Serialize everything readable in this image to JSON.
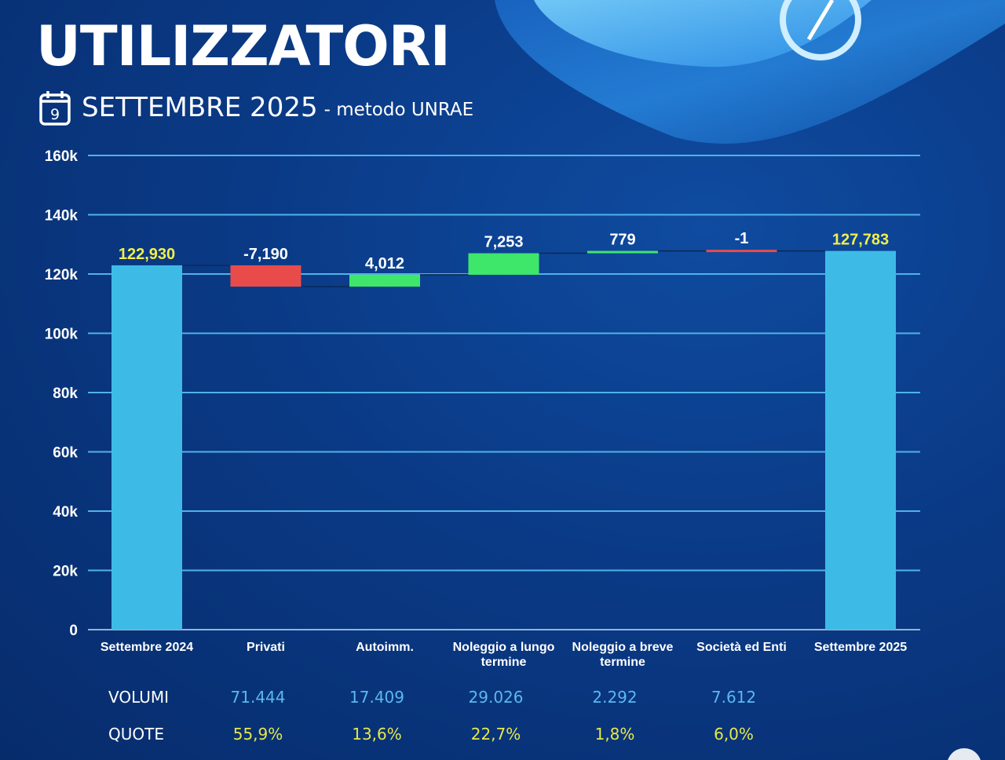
{
  "header": {
    "title": "UTILIZZATORI",
    "subtitle": "SETTEMBRE 2025",
    "method": "- metodo UNRAE",
    "calendar_day": "9"
  },
  "colors": {
    "total": "#3dbbe6",
    "decrease": "#e94b4b",
    "increase": "#3ee66a",
    "gridline": "#4fb3e8",
    "total_label": "#f2ef4a",
    "delta_label": "#ffffff"
  },
  "chart_data": {
    "type": "waterfall",
    "title": "",
    "xlabel": "",
    "ylabel": "",
    "ylim": [
      0,
      160000
    ],
    "yticks": [
      0,
      20000,
      40000,
      60000,
      80000,
      100000,
      120000,
      140000,
      160000
    ],
    "ytick_labels": [
      "0",
      "20k",
      "40k",
      "60k",
      "80k",
      "100k",
      "120k",
      "140k",
      "160k"
    ],
    "grid": true,
    "categories": [
      "Settembre 2024",
      "Privati",
      "Autoimm.",
      "Noleggio a lungo termine",
      "Noleggio a breve termine",
      "Società ed Enti",
      "Settembre 2025"
    ],
    "category_lines": [
      [
        "Settembre 2024"
      ],
      [
        "Privati"
      ],
      [
        "Autoimm."
      ],
      [
        "Noleggio a lungo",
        "termine"
      ],
      [
        "Noleggio a breve",
        "termine"
      ],
      [
        "Società ed Enti"
      ],
      [
        "Settembre 2025"
      ]
    ],
    "values": [
      122930,
      -7190,
      4012,
      7253,
      779,
      -1,
      127783
    ],
    "kinds": [
      "total",
      "delta",
      "delta",
      "delta",
      "delta",
      "delta",
      "total"
    ],
    "data_labels": [
      "122,930",
      "-7,190",
      "4,012",
      "7,253",
      "779",
      "-1",
      "127,783"
    ]
  },
  "table": {
    "rows": [
      {
        "label": "VOLUMI",
        "values": [
          "71.444",
          "17.409",
          "29.026",
          "2.292",
          "7.612"
        ]
      },
      {
        "label": "QUOTE",
        "values": [
          "55,9%",
          "13,6%",
          "22,7%",
          "1,8%",
          "6,0%"
        ]
      }
    ]
  }
}
